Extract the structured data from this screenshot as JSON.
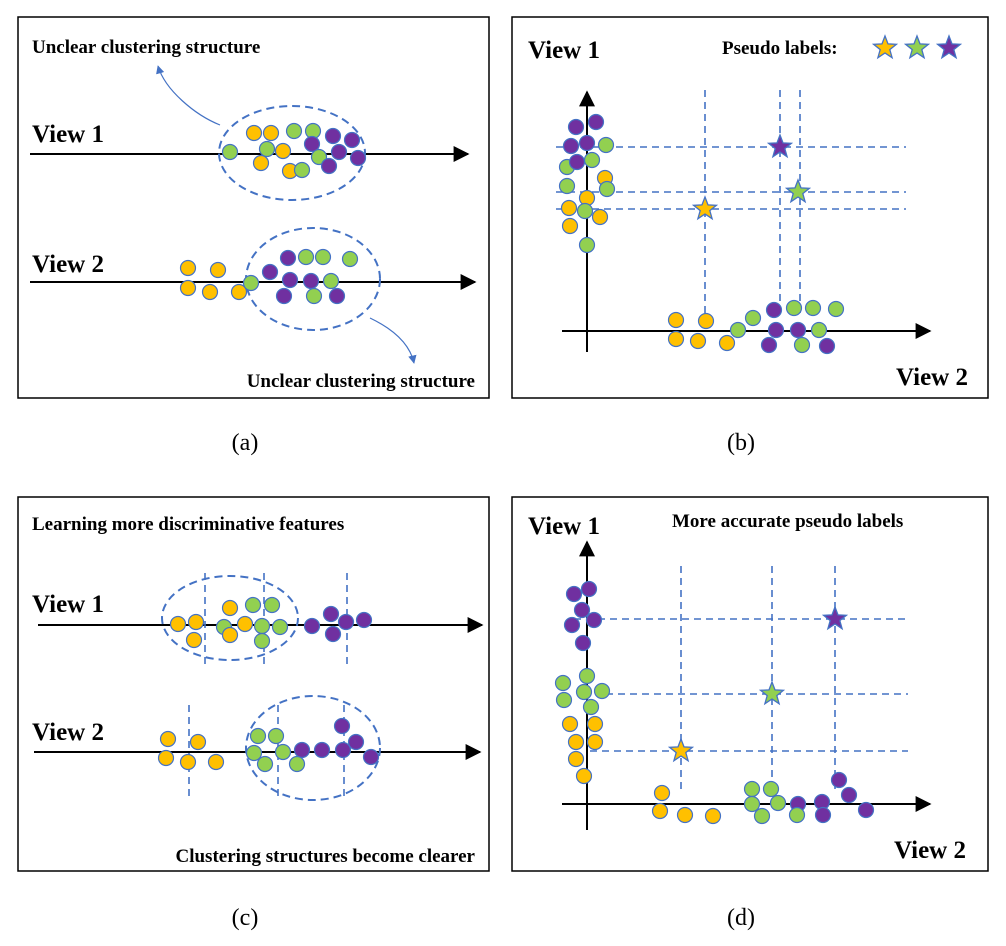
{
  "panels": {
    "a": {
      "top_note": "Unclear clustering structure",
      "view1": "View 1",
      "view2": "View 2",
      "bottom_note": "Unclear clustering structure",
      "caption": "(a)"
    },
    "b": {
      "view1": "View 1",
      "view2": "View 2",
      "legend": "Pseudo labels:",
      "caption": "(b)"
    },
    "c": {
      "top_note": "Learning more discriminative features",
      "view1": "View 1",
      "view2": "View 2",
      "bottom_note": "Clustering structures become clearer",
      "caption": "(c)"
    },
    "d": {
      "view1": "View 1",
      "view2": "View 2",
      "top_note": "More accurate pseudo labels",
      "caption": "(d)"
    }
  },
  "colors": {
    "yellow": "#FFC000",
    "green": "#92D050",
    "purple": "#7030A0",
    "stroke": "#4472C4",
    "dashed": "#4472C4"
  }
}
